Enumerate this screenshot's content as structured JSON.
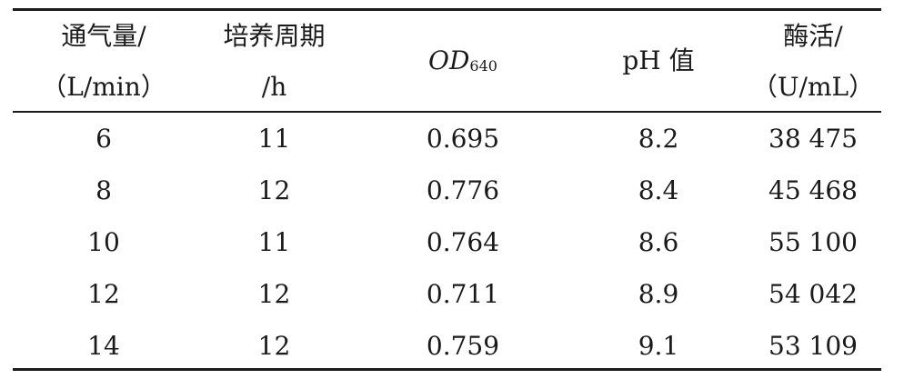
{
  "table": {
    "headers": [
      {
        "line1": "通气量/",
        "line2": "（L/min）"
      },
      {
        "line1": "培养周期",
        "line2": "/h"
      },
      {
        "main": "OD",
        "sub": "640"
      },
      {
        "main": "pH 值"
      },
      {
        "line1": "酶活/",
        "line2": "（U/mL）"
      }
    ],
    "rows": [
      [
        "6",
        "11",
        "0.695",
        "8.2",
        "38 475"
      ],
      [
        "8",
        "12",
        "0.776",
        "8.4",
        "45 468"
      ],
      [
        "10",
        "11",
        "0.764",
        "8.6",
        "55 100"
      ],
      [
        "12",
        "12",
        "0.711",
        "8.9",
        "54 042"
      ],
      [
        "14",
        "12",
        "0.759",
        "9.1",
        "53 109"
      ]
    ]
  }
}
